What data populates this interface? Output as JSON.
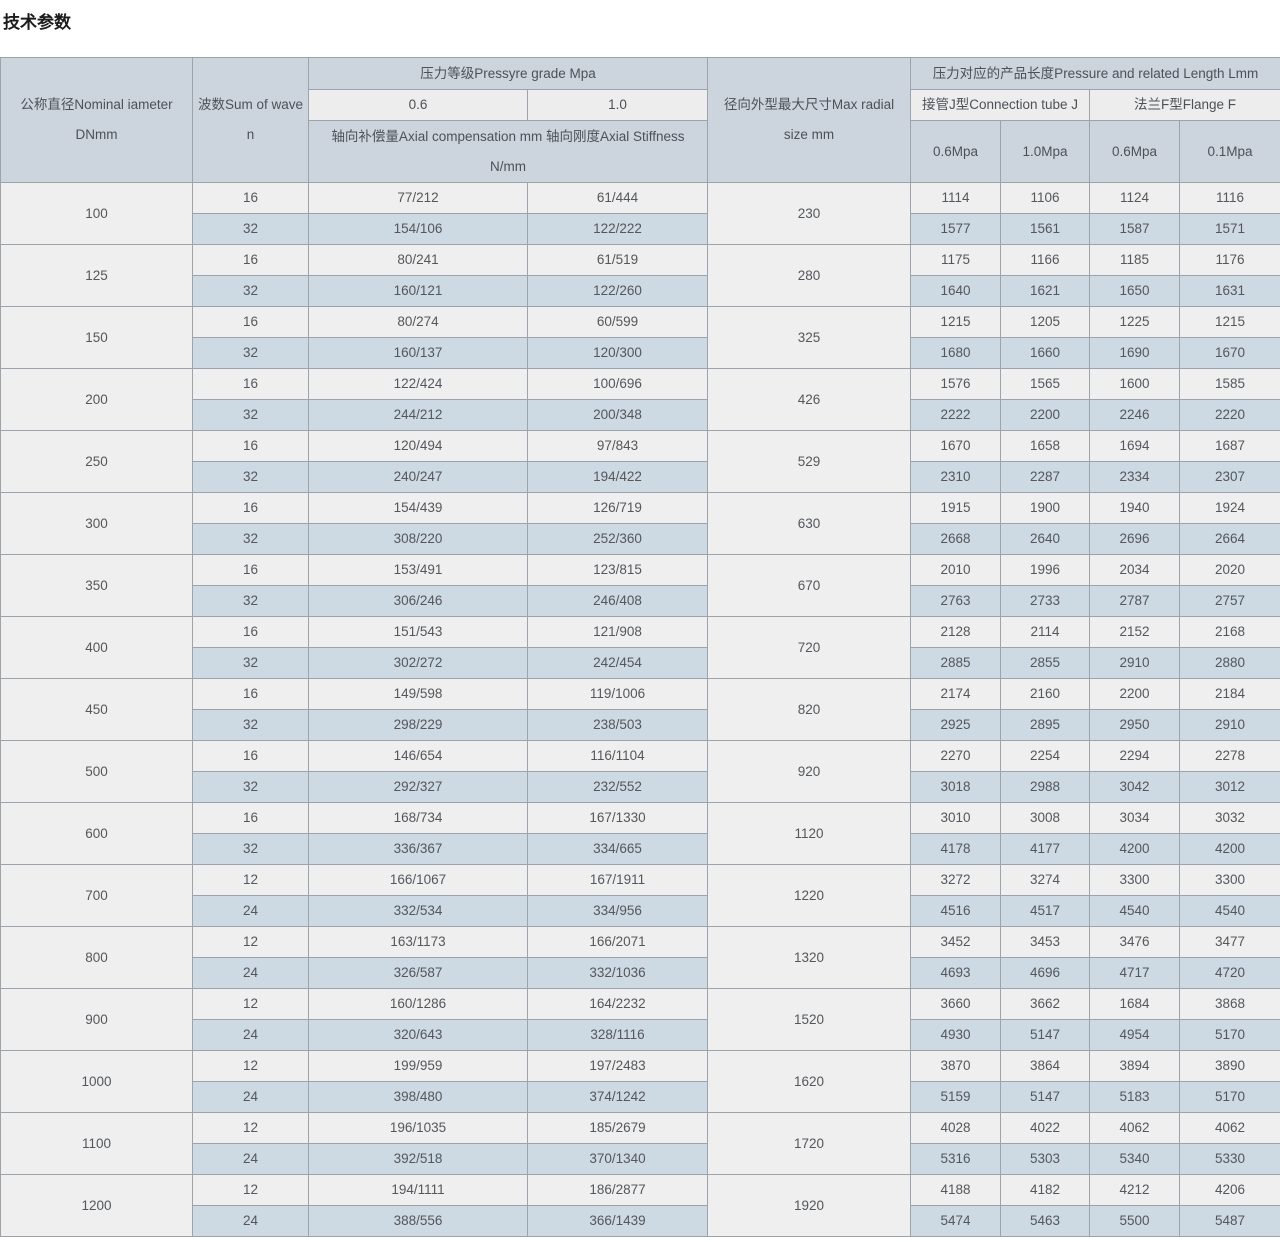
{
  "page_title": "技术参数",
  "table": {
    "header": {
      "nominal_diameter": "公称直径Nominal iameter DNmm",
      "wave_count": "波数Sum of wave n",
      "pressure_grade_group": "压力等级Pressyre grade Mpa",
      "grade_06": "0.6",
      "grade_10": "1.0",
      "axial_label": "轴向补偿量Axial compensation mm 轴向刚度Axial Stiffness N/mm",
      "max_radial": "径向外型最大尺寸Max radial size mm",
      "length_group": "压力对应的产品长度Pressure and related Length Lmm",
      "connection_tube_group": "接管J型Connection tube J",
      "flange_group": "法兰F型Flange F",
      "tube_06": "0.6Mpa",
      "tube_10": "1.0Mpa",
      "flange_06": "0.6Mpa",
      "flange_01": "0.1Mpa"
    },
    "rows": [
      {
        "dn": "100",
        "radial": "230",
        "sub": [
          {
            "n": "16",
            "comp06": "77/212",
            "comp10": "61/444",
            "tube06": "1114",
            "tube10": "1106",
            "flange06": "1124",
            "flange01": "1116"
          },
          {
            "n": "32",
            "comp06": "154/106",
            "comp10": "122/222",
            "tube06": "1577",
            "tube10": "1561",
            "flange06": "1587",
            "flange01": "1571"
          }
        ]
      },
      {
        "dn": "125",
        "radial": "280",
        "sub": [
          {
            "n": "16",
            "comp06": "80/241",
            "comp10": "61/519",
            "tube06": "1175",
            "tube10": "1166",
            "flange06": "1185",
            "flange01": "1176"
          },
          {
            "n": "32",
            "comp06": "160/121",
            "comp10": "122/260",
            "tube06": "1640",
            "tube10": "1621",
            "flange06": "1650",
            "flange01": "1631"
          }
        ]
      },
      {
        "dn": "150",
        "radial": "325",
        "sub": [
          {
            "n": "16",
            "comp06": "80/274",
            "comp10": "60/599",
            "tube06": "1215",
            "tube10": "1205",
            "flange06": "1225",
            "flange01": "1215"
          },
          {
            "n": "32",
            "comp06": "160/137",
            "comp10": "120/300",
            "tube06": "1680",
            "tube10": "1660",
            "flange06": "1690",
            "flange01": "1670"
          }
        ]
      },
      {
        "dn": "200",
        "radial": "426",
        "sub": [
          {
            "n": "16",
            "comp06": "122/424",
            "comp10": "100/696",
            "tube06": "1576",
            "tube10": "1565",
            "flange06": "1600",
            "flange01": "1585"
          },
          {
            "n": "32",
            "comp06": "244/212",
            "comp10": "200/348",
            "tube06": "2222",
            "tube10": "2200",
            "flange06": "2246",
            "flange01": "2220"
          }
        ]
      },
      {
        "dn": "250",
        "radial": "529",
        "sub": [
          {
            "n": "16",
            "comp06": "120/494",
            "comp10": "97/843",
            "tube06": "1670",
            "tube10": "1658",
            "flange06": "1694",
            "flange01": "1687"
          },
          {
            "n": "32",
            "comp06": "240/247",
            "comp10": "194/422",
            "tube06": "2310",
            "tube10": "2287",
            "flange06": "2334",
            "flange01": "2307"
          }
        ]
      },
      {
        "dn": "300",
        "radial": "630",
        "sub": [
          {
            "n": "16",
            "comp06": "154/439",
            "comp10": "126/719",
            "tube06": "1915",
            "tube10": "1900",
            "flange06": "1940",
            "flange01": "1924"
          },
          {
            "n": "32",
            "comp06": "308/220",
            "comp10": "252/360",
            "tube06": "2668",
            "tube10": "2640",
            "flange06": "2696",
            "flange01": "2664"
          }
        ]
      },
      {
        "dn": "350",
        "radial": "670",
        "sub": [
          {
            "n": "16",
            "comp06": "153/491",
            "comp10": "123/815",
            "tube06": "2010",
            "tube10": "1996",
            "flange06": "2034",
            "flange01": "2020"
          },
          {
            "n": "32",
            "comp06": "306/246",
            "comp10": "246/408",
            "tube06": "2763",
            "tube10": "2733",
            "flange06": "2787",
            "flange01": "2757"
          }
        ]
      },
      {
        "dn": "400",
        "radial": "720",
        "sub": [
          {
            "n": "16",
            "comp06": "151/543",
            "comp10": "121/908",
            "tube06": "2128",
            "tube10": "2114",
            "flange06": "2152",
            "flange01": "2168"
          },
          {
            "n": "32",
            "com06": "",
            "comp06": "302/272",
            "comp10": "242/454",
            "tube06": "2885",
            "tube10": "2855",
            "flange06": "2910",
            "flange01": "2880"
          }
        ]
      },
      {
        "dn": "450",
        "radial": "820",
        "sub": [
          {
            "n": "16",
            "comp06": "149/598",
            "comp10": "119/1006",
            "tube06": "2174",
            "tube10": "2160",
            "flange06": "2200",
            "flange01": "2184"
          },
          {
            "n": "32",
            "comp06": "298/229",
            "comp10": "238/503",
            "tube06": "2925",
            "tube10": "2895",
            "flange06": "2950",
            "flange01": "2910"
          }
        ]
      },
      {
        "dn": "500",
        "radial": "920",
        "sub": [
          {
            "n": "16",
            "comp06": "146/654",
            "comp10": "116/1104",
            "tube06": "2270",
            "tube10": "2254",
            "flange06": "2294",
            "flange01": "2278"
          },
          {
            "n": "32",
            "comp06": "292/327",
            "comp10": "232/552",
            "tube06": "3018",
            "tube10": "2988",
            "flange06": "3042",
            "flange01": "3012"
          }
        ]
      },
      {
        "dn": "600",
        "radial": "1120",
        "sub": [
          {
            "n": "16",
            "comp06": "168/734",
            "comp10": "167/1330",
            "tube06": "3010",
            "tube10": "3008",
            "flange06": "3034",
            "flange01": "3032"
          },
          {
            "n": "32",
            "comp06": "336/367",
            "comp10": "334/665",
            "tube06": "4178",
            "tube10": "4177",
            "flange06": "4200",
            "flange01": "4200"
          }
        ]
      },
      {
        "dn": "700",
        "radial": "1220",
        "sub": [
          {
            "n": "12",
            "comp06": "166/1067",
            "comp10": "167/1911",
            "tube06": "3272",
            "tube10": "3274",
            "flange06": "3300",
            "flange01": "3300"
          },
          {
            "n": "24",
            "comp06": "332/534",
            "comp10": "334/956",
            "tube06": "4516",
            "tube10": "4517",
            "flange06": "4540",
            "flange01": "4540"
          }
        ]
      },
      {
        "dn": "800",
        "radial": "1320",
        "sub": [
          {
            "n": "12",
            "comp06": "163/1173",
            "comp10": "166/2071",
            "tube06": "3452",
            "tube10": "3453",
            "flange06": "3476",
            "flange01": "3477"
          },
          {
            "n": "24",
            "comp06": "326/587",
            "comp10": "332/1036",
            "tube06": "4693",
            "tube10": "4696",
            "flange06": "4717",
            "flange01": "4720"
          }
        ]
      },
      {
        "dn": "900",
        "radial": "1520",
        "sub": [
          {
            "n": "12",
            "comp06": "160/1286",
            "comp10": "164/2232",
            "tube06": "3660",
            "tube10": "3662",
            "flange06": "1684",
            "flange01": "3868"
          },
          {
            "n": "24",
            "comp06": "320/643",
            "comp10": "328/1116",
            "tube06": "4930",
            "tube10": "5147",
            "flange06": "4954",
            "flange01": "5170"
          }
        ]
      },
      {
        "dn": "1000",
        "radial": "1620",
        "sub": [
          {
            "n": "12",
            "comp06": "199/959",
            "comp10": "197/2483",
            "tube06": "3870",
            "tube10": "3864",
            "flange06": "3894",
            "flange01": "3890"
          },
          {
            "n": "24",
            "comp06": "398/480",
            "comp10": "374/1242",
            "tube06": "5159",
            "tube10": "5147",
            "flange06": "5183",
            "flange01": "5170"
          }
        ]
      },
      {
        "dn": "1100",
        "radial": "1720",
        "sub": [
          {
            "n": "12",
            "comp06": "196/1035",
            "comp10": "185/2679",
            "tube06": "4028",
            "tube10": "4022",
            "flange06": "4062",
            "flange01": "4062"
          },
          {
            "n": "24",
            "comp06": "392/518",
            "comp10": "370/1340",
            "tube06": "5316",
            "tube10": "5303",
            "flange06": "5340",
            "flange01": "5330"
          }
        ]
      },
      {
        "dn": "1200",
        "radial": "1920",
        "sub": [
          {
            "n": "12",
            "comp06": "194/1111",
            "comp10": "186/2877",
            "tube06": "4188",
            "tube10": "4182",
            "flange06": "4212",
            "flange01": "4206"
          },
          {
            "n": "24",
            "comp06": "388/556",
            "comp10": "366/1439",
            "tube06": "5474",
            "tube10": "5463",
            "flange06": "5500",
            "flange01": "5487"
          }
        ]
      }
    ]
  }
}
